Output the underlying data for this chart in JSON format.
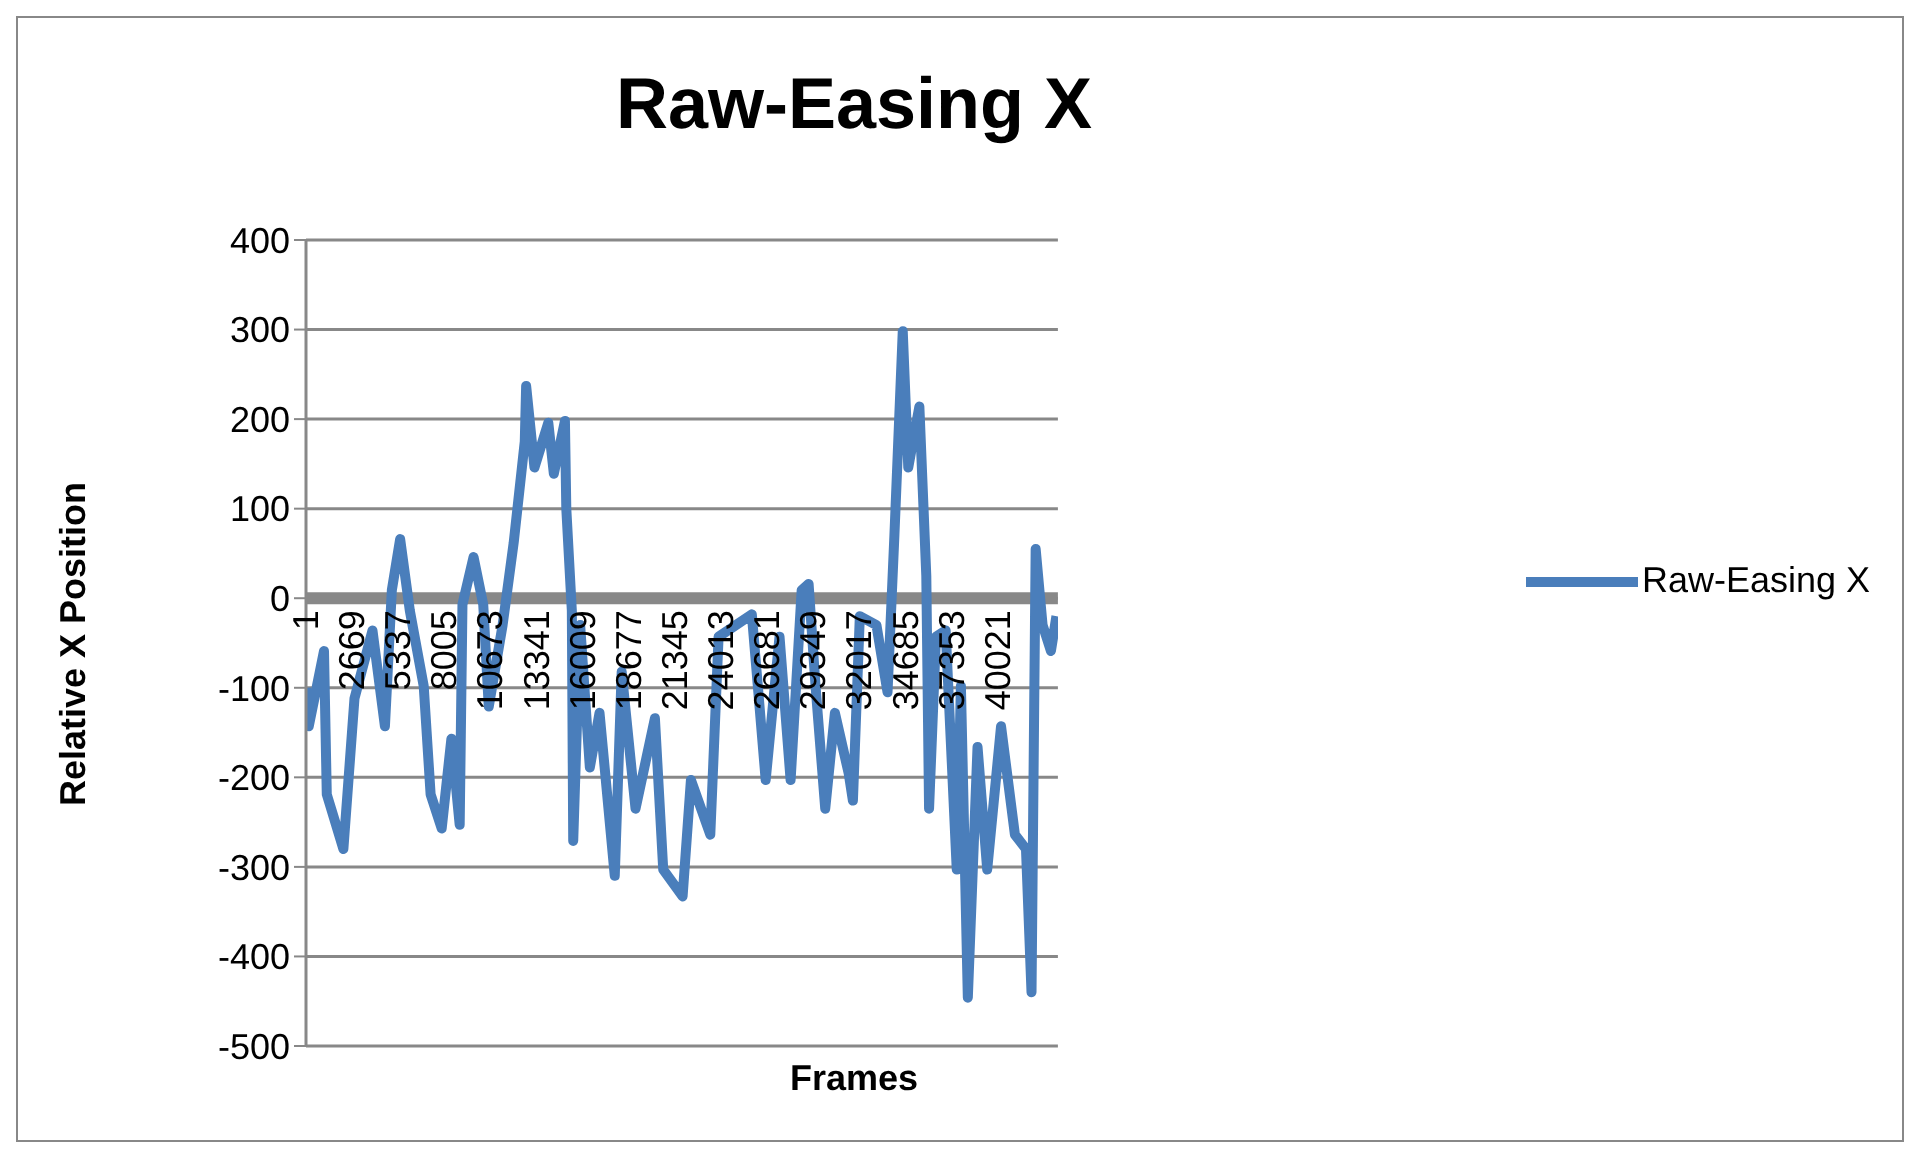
{
  "chart_data": {
    "type": "line",
    "title": "Raw-Easing X",
    "xlabel": "Frames",
    "ylabel": "Relative X Position",
    "x": [
      1,
      161,
      1042,
      1203,
      2164,
      2805,
      3846,
      4567,
      4967,
      5448,
      6009,
      6810,
      7210,
      7851,
      8412,
      8892,
      9052,
      9693,
      10254,
      10574,
      11375,
      12016,
      12657,
      12737,
      13218,
      14019,
      14339,
      14980,
      15060,
      15380,
      15460,
      15861,
      16422,
      16982,
      17863,
      18264,
      19065,
      20186,
      20667,
      21788,
      22269,
      23390,
      23870,
      25793,
      26594,
      27395,
      28036,
      28677,
      29077,
      29478,
      30039,
      30599,
      31400,
      31641,
      32041,
      33002,
      33643,
      34043,
      34524,
      34844,
      35485,
      35886,
      36046,
      36446,
      37007,
      37648,
      37888,
      38289,
      38850,
      39410,
      40211,
      41012,
      41653,
      41973,
      42213,
      42614,
      43095,
      43415
    ],
    "series": [
      {
        "name": "Raw-Easing X",
        "color": "#4a7ebb",
        "values": [
          -100,
          -143,
          -59,
          -219,
          -280,
          -112,
          -36,
          -143,
          9,
          66,
          -14,
          -98,
          -219,
          -257,
          -157,
          -253,
          -7,
          46,
          -7,
          -121,
          -30,
          62,
          175,
          237,
          146,
          196,
          139,
          198,
          100,
          -14,
          -271,
          -30,
          -189,
          -128,
          -310,
          -82,
          -235,
          -134,
          -303,
          -333,
          -203,
          -264,
          -43,
          -18,
          -203,
          -43,
          -203,
          9,
          16,
          -98,
          -235,
          -128,
          -196,
          -226,
          -20,
          -30,
          -105,
          71,
          298,
          146,
          214,
          25,
          -235,
          -43,
          -36,
          -303,
          -98,
          -446,
          -166,
          -303,
          -143,
          -264,
          -280,
          -440,
          55,
          -30,
          -59,
          -20
        ]
      }
    ],
    "xlim": [
      1,
      43500
    ],
    "xticks": [
      1,
      2669,
      5337,
      8005,
      10673,
      13341,
      16009,
      18677,
      21345,
      24013,
      26681,
      29349,
      32017,
      34685,
      37353,
      40021
    ],
    "ylim": [
      -500,
      400
    ],
    "yticks": [
      -500,
      -400,
      -300,
      -200,
      -100,
      0,
      100,
      200,
      300,
      400
    ],
    "grid": "y",
    "legend": "right",
    "marker": "none",
    "line_style": "solid"
  }
}
